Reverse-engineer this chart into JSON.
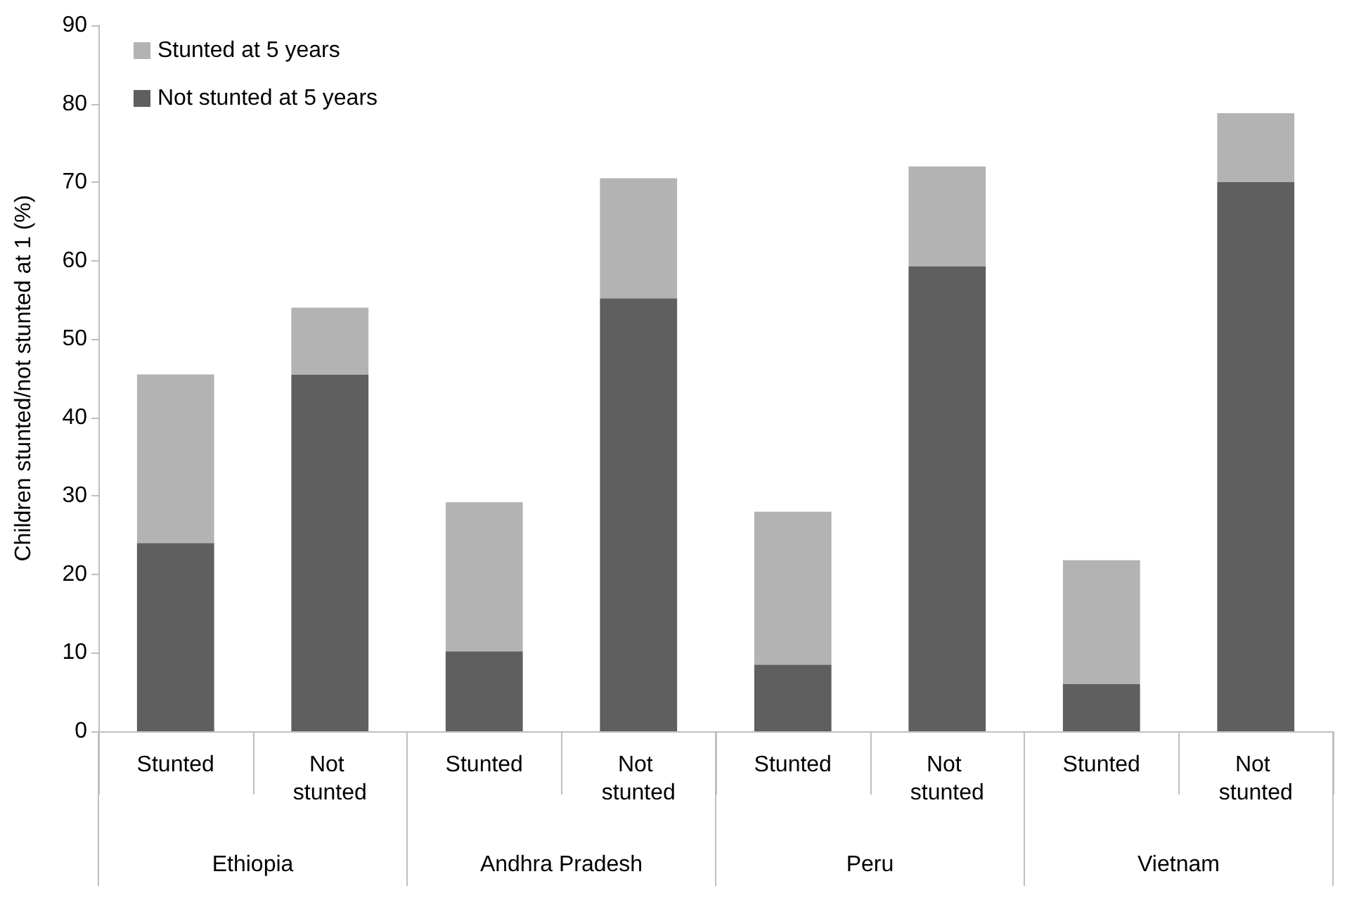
{
  "chart_data": {
    "type": "bar",
    "stacked": true,
    "ylabel": "Children stunted/not stunted at 1 (%)",
    "categories": [
      "Stunted",
      "Not stunted",
      "Stunted",
      "Not stunted",
      "Stunted",
      "Not stunted",
      "Stunted",
      "Not stunted"
    ],
    "annotations": [
      "Ethiopia",
      "Andhra Pradesh",
      "Peru",
      "Vietnam"
    ],
    "series": [
      {
        "name": "Not stunted at 5 years",
        "color": "#5f5f5f",
        "values": [
          24,
          45.5,
          10.2,
          55.2,
          8.5,
          59.3,
          6,
          70
        ]
      },
      {
        "name": "Stunted at 5 years",
        "color": "#b3b3b3",
        "values": [
          21.5,
          8.5,
          19,
          15.3,
          19.5,
          12.7,
          15.8,
          8.8
        ]
      }
    ],
    "ylim": [
      0,
      90
    ],
    "yticks": [
      0,
      10,
      20,
      30,
      40,
      50,
      60,
      70,
      80,
      90
    ],
    "grid": false,
    "legend": "top left"
  }
}
